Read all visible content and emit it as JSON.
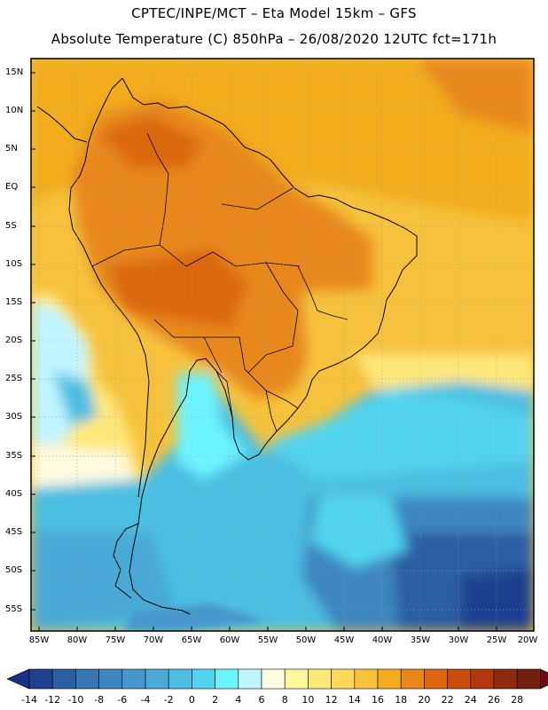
{
  "header": {
    "line1": "CPTEC/INPE/MCT –  Eta Model 15km – GFS",
    "line2": "Absolute Temperature (C) 850hPa – 26/08/2020 12UTC fct=171h"
  },
  "axes": {
    "latitude_labels": [
      "15N",
      "10N",
      "5N",
      "EQ",
      "5S",
      "10S",
      "15S",
      "20S",
      "25S",
      "30S",
      "35S",
      "40S",
      "45S",
      "50S",
      "55S"
    ],
    "longitude_labels": [
      "85W",
      "80W",
      "75W",
      "70W",
      "65W",
      "60W",
      "55W",
      "50W",
      "45W",
      "40W",
      "35W",
      "30W",
      "25W",
      "20W"
    ]
  },
  "legend": {
    "labels": [
      "-14",
      "-12",
      "-10",
      "-8",
      "-6",
      "-4",
      "-2",
      "0",
      "2",
      "4",
      "6",
      "8",
      "10",
      "12",
      "14",
      "16",
      "18",
      "20",
      "22",
      "24",
      "26",
      "28"
    ],
    "colors": [
      "#1f3f8f",
      "#2a5fa3",
      "#3a76b4",
      "#3d86c0",
      "#4797cd",
      "#4aa9d6",
      "#4cbfe2",
      "#52d4ee",
      "#6cf4ff",
      "#bff5ff",
      "#fffae0",
      "#fff6a0",
      "#ffe87a",
      "#ffd85a",
      "#f6c23c",
      "#f2ac1e",
      "#e8881a",
      "#dc6710",
      "#c94c0c",
      "#b0380c",
      "#8f2a0c",
      "#74200e"
    ],
    "low_arrow_color": "#1c2e86",
    "high_arrow_color": "#6e0a18"
  }
}
